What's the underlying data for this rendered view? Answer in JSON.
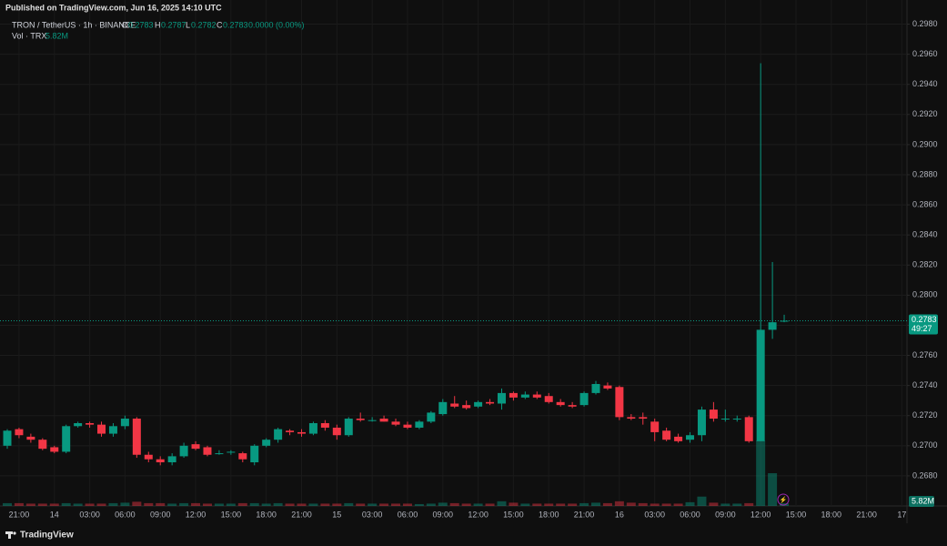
{
  "header": {
    "published": "Published on TradingView.com, Jun 16, 2025 14:10 UTC"
  },
  "legend": {
    "symbol": "TRON / TetherUS · 1h · BINANCE",
    "o_label": "O",
    "o": "0.2783",
    "h_label": "H",
    "h": "0.2787",
    "l_label": "L",
    "l": "0.2782",
    "c_label": "C",
    "c": "0.2783",
    "change": "0.0000 (0.00%)",
    "vol_name": "Vol · TRX",
    "vol": "5.82M"
  },
  "footer": {
    "brand": "TradingView"
  },
  "chart_data": {
    "type": "candlestick",
    "categories": [
      null,
      "21:00",
      null,
      null,
      "14",
      null,
      null,
      "03:00",
      null,
      null,
      "06:00",
      null,
      null,
      "09:00",
      null,
      null,
      "12:00",
      null,
      null,
      "15:00",
      null,
      null,
      "18:00",
      null,
      null,
      "21:00",
      null,
      null,
      "15",
      null,
      null,
      "03:00",
      null,
      null,
      "06:00",
      null,
      null,
      "09:00",
      null,
      null,
      "12:00",
      null,
      null,
      "15:00",
      null,
      null,
      "18:00",
      null,
      null,
      "21:00",
      null,
      null,
      "16",
      null,
      null,
      "03:00",
      null,
      null,
      "06:00",
      null,
      null,
      "09:00",
      null,
      null,
      "12:00",
      null,
      null,
      "15:00",
      null,
      null,
      "18:00",
      null,
      null,
      "21:00",
      null,
      null,
      "17"
    ],
    "open": [
      0.27,
      0.2711,
      0.2706,
      0.2704,
      0.2699,
      0.2696,
      0.2713,
      0.2715,
      0.2714,
      0.2708,
      0.2713,
      0.2718,
      0.2694,
      0.2691,
      0.2689,
      0.2693,
      0.2701,
      0.2699,
      0.2695,
      0.2696,
      0.2695,
      0.2689,
      0.27,
      0.2704,
      0.271,
      0.2709,
      0.2708,
      0.2715,
      0.2712,
      0.2707,
      0.2718,
      0.2717,
      0.2718,
      0.2716,
      0.2714,
      0.2712,
      0.2716,
      0.2721,
      0.2728,
      0.2727,
      0.2726,
      0.2729,
      0.2728,
      0.2735,
      0.2732,
      0.2734,
      0.2733,
      0.2729,
      0.2727,
      0.2727,
      0.2735,
      0.274,
      0.2739,
      0.2719,
      0.2719,
      0.2716,
      0.271,
      0.2706,
      0.2704,
      0.2707,
      0.2724,
      0.2718,
      0.2718,
      0.2719,
      0.2703,
      0.2777,
      0.2783,
      null,
      null,
      null,
      null,
      null,
      null,
      null,
      null,
      null,
      null
    ],
    "high": [
      0.2711,
      0.2712,
      0.2708,
      0.2705,
      0.27,
      0.2714,
      0.2716,
      0.2716,
      0.2716,
      0.2715,
      0.272,
      0.2719,
      0.2696,
      0.2693,
      0.2695,
      0.2702,
      0.2703,
      0.27,
      0.2697,
      0.2697,
      0.2696,
      0.2701,
      0.2705,
      0.2712,
      0.2711,
      0.2711,
      0.2716,
      0.2717,
      0.2714,
      0.2719,
      0.2722,
      0.2719,
      0.272,
      0.2718,
      0.2716,
      0.2717,
      0.2723,
      0.2731,
      0.2733,
      0.273,
      0.273,
      0.2731,
      0.2738,
      0.2736,
      0.2736,
      0.2736,
      0.2735,
      0.2731,
      0.2729,
      0.2736,
      0.2743,
      0.2742,
      0.274,
      0.2721,
      0.2722,
      0.2718,
      0.2712,
      0.2708,
      0.2709,
      0.2726,
      0.2729,
      0.2724,
      0.272,
      0.272,
      0.2954,
      0.2822,
      0.2787,
      null,
      null,
      null,
      null,
      null,
      null,
      null,
      null,
      null,
      null
    ],
    "low": [
      0.2698,
      0.2705,
      0.2702,
      0.2697,
      0.2695,
      0.2695,
      0.2712,
      0.2712,
      0.2706,
      0.2706,
      0.2711,
      0.2692,
      0.2689,
      0.2687,
      0.2687,
      0.2692,
      0.2697,
      0.2693,
      0.2694,
      0.2694,
      0.2689,
      0.2687,
      0.2699,
      0.2702,
      0.2707,
      0.2706,
      0.2707,
      0.271,
      0.2704,
      0.2706,
      0.2716,
      0.2716,
      0.2716,
      0.2713,
      0.2711,
      0.2711,
      0.2715,
      0.272,
      0.2725,
      0.2724,
      0.2725,
      0.2727,
      0.2724,
      0.273,
      0.2731,
      0.2731,
      0.2728,
      0.2726,
      0.2725,
      0.2726,
      0.2734,
      0.2737,
      0.2717,
      0.2717,
      0.2714,
      0.2703,
      0.2703,
      0.2702,
      0.2702,
      0.2703,
      0.2716,
      0.2716,
      0.2716,
      0.2702,
      0.2703,
      0.2771,
      0.2782,
      null,
      null,
      null,
      null,
      null,
      null,
      null,
      null,
      null,
      null
    ],
    "close": [
      0.271,
      0.2707,
      0.2704,
      0.2698,
      0.2696,
      0.2713,
      0.2715,
      0.2714,
      0.2708,
      0.2713,
      0.2718,
      0.2694,
      0.2691,
      0.2689,
      0.2693,
      0.27,
      0.2698,
      0.2694,
      0.2695,
      0.2696,
      0.2691,
      0.27,
      0.2704,
      0.2711,
      0.2709,
      0.2708,
      0.2715,
      0.2712,
      0.2707,
      0.2718,
      0.2717,
      0.2717,
      0.2716,
      0.2714,
      0.2712,
      0.2716,
      0.2722,
      0.2729,
      0.2726,
      0.2725,
      0.2729,
      0.2728,
      0.2735,
      0.2732,
      0.2734,
      0.2732,
      0.2729,
      0.2727,
      0.2726,
      0.2735,
      0.2741,
      0.2738,
      0.2719,
      0.2718,
      0.2718,
      0.2709,
      0.2704,
      0.2703,
      0.2707,
      0.2724,
      0.2718,
      0.2718,
      0.2718,
      0.2703,
      0.2777,
      0.2782,
      0.2783,
      null,
      null,
      null,
      null,
      null,
      null,
      null,
      null,
      null,
      null
    ],
    "volume": [
      6,
      6,
      5,
      5,
      5,
      6,
      5,
      5,
      5,
      6,
      7,
      9,
      6,
      6,
      5,
      6,
      6,
      5,
      5,
      5,
      6,
      6,
      5,
      6,
      5,
      5,
      5,
      5,
      5,
      6,
      5,
      5,
      5,
      5,
      5,
      4,
      5,
      7,
      6,
      5,
      5,
      5,
      10,
      7,
      5,
      5,
      5,
      5,
      5,
      6,
      7,
      6,
      10,
      7,
      6,
      5,
      5,
      5,
      8,
      20,
      7,
      5,
      5,
      6,
      140,
      70,
      5.82,
      null,
      null,
      null,
      null,
      null,
      null,
      null,
      null,
      null,
      null
    ],
    "volume_value_label": "5.82M",
    "last_price": {
      "value": 0.2783,
      "label": "0.2783"
    },
    "countdown": "49:27",
    "up_color": "#089981",
    "down_color": "#f23645",
    "ylim": [
      0.266,
      0.2993
    ],
    "yticks": [
      {
        "value": 0.268,
        "label": "0.2680"
      },
      {
        "value": 0.27,
        "label": "0.2700"
      },
      {
        "value": 0.272,
        "label": "0.2720"
      },
      {
        "value": 0.274,
        "label": "0.2740"
      },
      {
        "value": 0.276,
        "label": "0.2760"
      },
      {
        "value": 0.278,
        "label": "0.2780"
      },
      {
        "value": 0.28,
        "label": "0.2800"
      },
      {
        "value": 0.282,
        "label": "0.2820"
      },
      {
        "value": 0.284,
        "label": "0.2840"
      },
      {
        "value": 0.286,
        "label": "0.2860"
      },
      {
        "value": 0.288,
        "label": "0.2880"
      },
      {
        "value": 0.29,
        "label": "0.2900"
      },
      {
        "value": 0.292,
        "label": "0.2920"
      },
      {
        "value": 0.294,
        "label": "0.2940"
      },
      {
        "value": 0.296,
        "label": "0.2960"
      },
      {
        "value": 0.298,
        "label": "0.2980"
      }
    ],
    "grid": true
  }
}
